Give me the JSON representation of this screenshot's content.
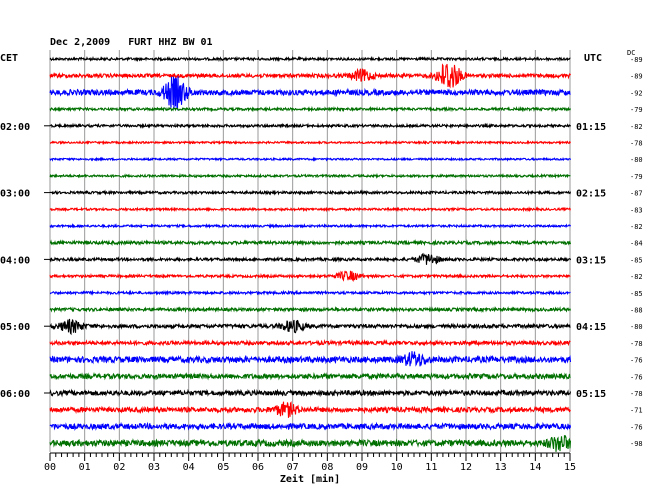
{
  "chart_data": {
    "type": "line",
    "title": "Dec 2,2009   FURT HHZ BW 01",
    "left_timezone": "CET",
    "right_timezone": "UTC",
    "dc_label": "DC",
    "xlabel": "Zeit [min]",
    "x_ticks": [
      "00",
      "01",
      "02",
      "03",
      "04",
      "05",
      "06",
      "07",
      "08",
      "09",
      "10",
      "11",
      "12",
      "13",
      "14",
      "15"
    ],
    "xlim": [
      0,
      15
    ],
    "grid": true,
    "colors": [
      "#000000",
      "#ff0000",
      "#0000ff",
      "#007000"
    ],
    "left_hour_labels": [
      {
        "trace": 4,
        "label": "02:00"
      },
      {
        "trace": 8,
        "label": "03:00"
      },
      {
        "trace": 12,
        "label": "04:00"
      },
      {
        "trace": 16,
        "label": "05:00"
      },
      {
        "trace": 20,
        "label": "06:00"
      }
    ],
    "right_hour_labels": [
      {
        "trace": 4,
        "label": "01:15"
      },
      {
        "trace": 8,
        "label": "02:15"
      },
      {
        "trace": 12,
        "label": "03:15"
      },
      {
        "trace": 16,
        "label": "04:15"
      },
      {
        "trace": 20,
        "label": "05:15"
      }
    ],
    "dc_offsets": [
      "-89",
      "-89",
      "-92",
      "-79",
      "-82",
      "-78",
      "-80",
      "-79",
      "-87",
      "-83",
      "-82",
      "-84",
      "-85",
      "-82",
      "-85",
      "-88",
      "-80",
      "-78",
      "-76",
      "-76",
      "-78",
      "-71",
      "-76",
      "-98"
    ],
    "bursts": [
      {
        "trace": 1,
        "minute": 11.5,
        "amplitude": 1.0
      },
      {
        "trace": 1,
        "minute": 9.0,
        "amplitude": 0.35
      },
      {
        "trace": 2,
        "minute": 3.6,
        "amplitude": 1.0
      },
      {
        "trace": 12,
        "minute": 10.9,
        "amplitude": 0.35
      },
      {
        "trace": 13,
        "minute": 8.6,
        "amplitude": 0.3
      },
      {
        "trace": 16,
        "minute": 0.6,
        "amplitude": 0.4
      },
      {
        "trace": 16,
        "minute": 7.0,
        "amplitude": 0.35
      },
      {
        "trace": 18,
        "minute": 10.5,
        "amplitude": 0.4
      },
      {
        "trace": 21,
        "minute": 6.8,
        "amplitude": 0.4
      },
      {
        "trace": 23,
        "minute": 14.7,
        "amplitude": 0.45
      }
    ],
    "noise_levels": [
      0.08,
      0.12,
      0.18,
      0.08,
      0.08,
      0.06,
      0.06,
      0.07,
      0.08,
      0.07,
      0.07,
      0.1,
      0.09,
      0.08,
      0.08,
      0.1,
      0.12,
      0.12,
      0.2,
      0.16,
      0.16,
      0.16,
      0.18,
      0.2
    ]
  }
}
